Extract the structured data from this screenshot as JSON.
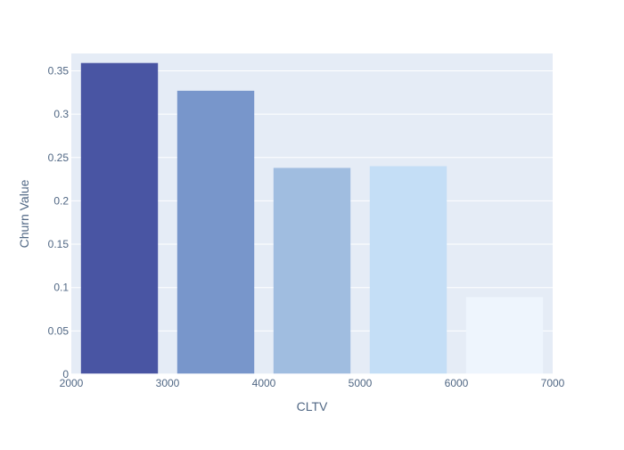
{
  "chart_data": {
    "type": "bar",
    "title": "",
    "xlabel": "CLTV",
    "ylabel": "Churn Value",
    "xlim": [
      2000,
      7000
    ],
    "ylim": [
      0,
      0.37
    ],
    "x_ticks": [
      2000,
      3000,
      4000,
      5000,
      6000,
      7000
    ],
    "y_ticks": [
      0,
      0.05,
      0.1,
      0.15,
      0.2,
      0.25,
      0.3,
      0.35
    ],
    "x_tick_labels": [
      "2000",
      "3000",
      "4000",
      "5000",
      "6000",
      "7000"
    ],
    "y_tick_labels": [
      "0",
      "0.05",
      "0.1",
      "0.15",
      "0.2",
      "0.25",
      "0.3",
      "0.35"
    ],
    "bars": [
      {
        "x0": 2000,
        "x1": 3000,
        "value": 0.359,
        "color": "#4955a3"
      },
      {
        "x0": 3000,
        "x1": 4000,
        "value": 0.327,
        "color": "#7896cb"
      },
      {
        "x0": 4000,
        "x1": 5000,
        "value": 0.238,
        "color": "#a0bde0"
      },
      {
        "x0": 5000,
        "x1": 6000,
        "value": 0.24,
        "color": "#c4def6"
      },
      {
        "x0": 6000,
        "x1": 7000,
        "value": 0.089,
        "color": "#eef5fd"
      }
    ],
    "grid": true,
    "plot_background": "#e5ecf6",
    "text_color": "#506784"
  }
}
